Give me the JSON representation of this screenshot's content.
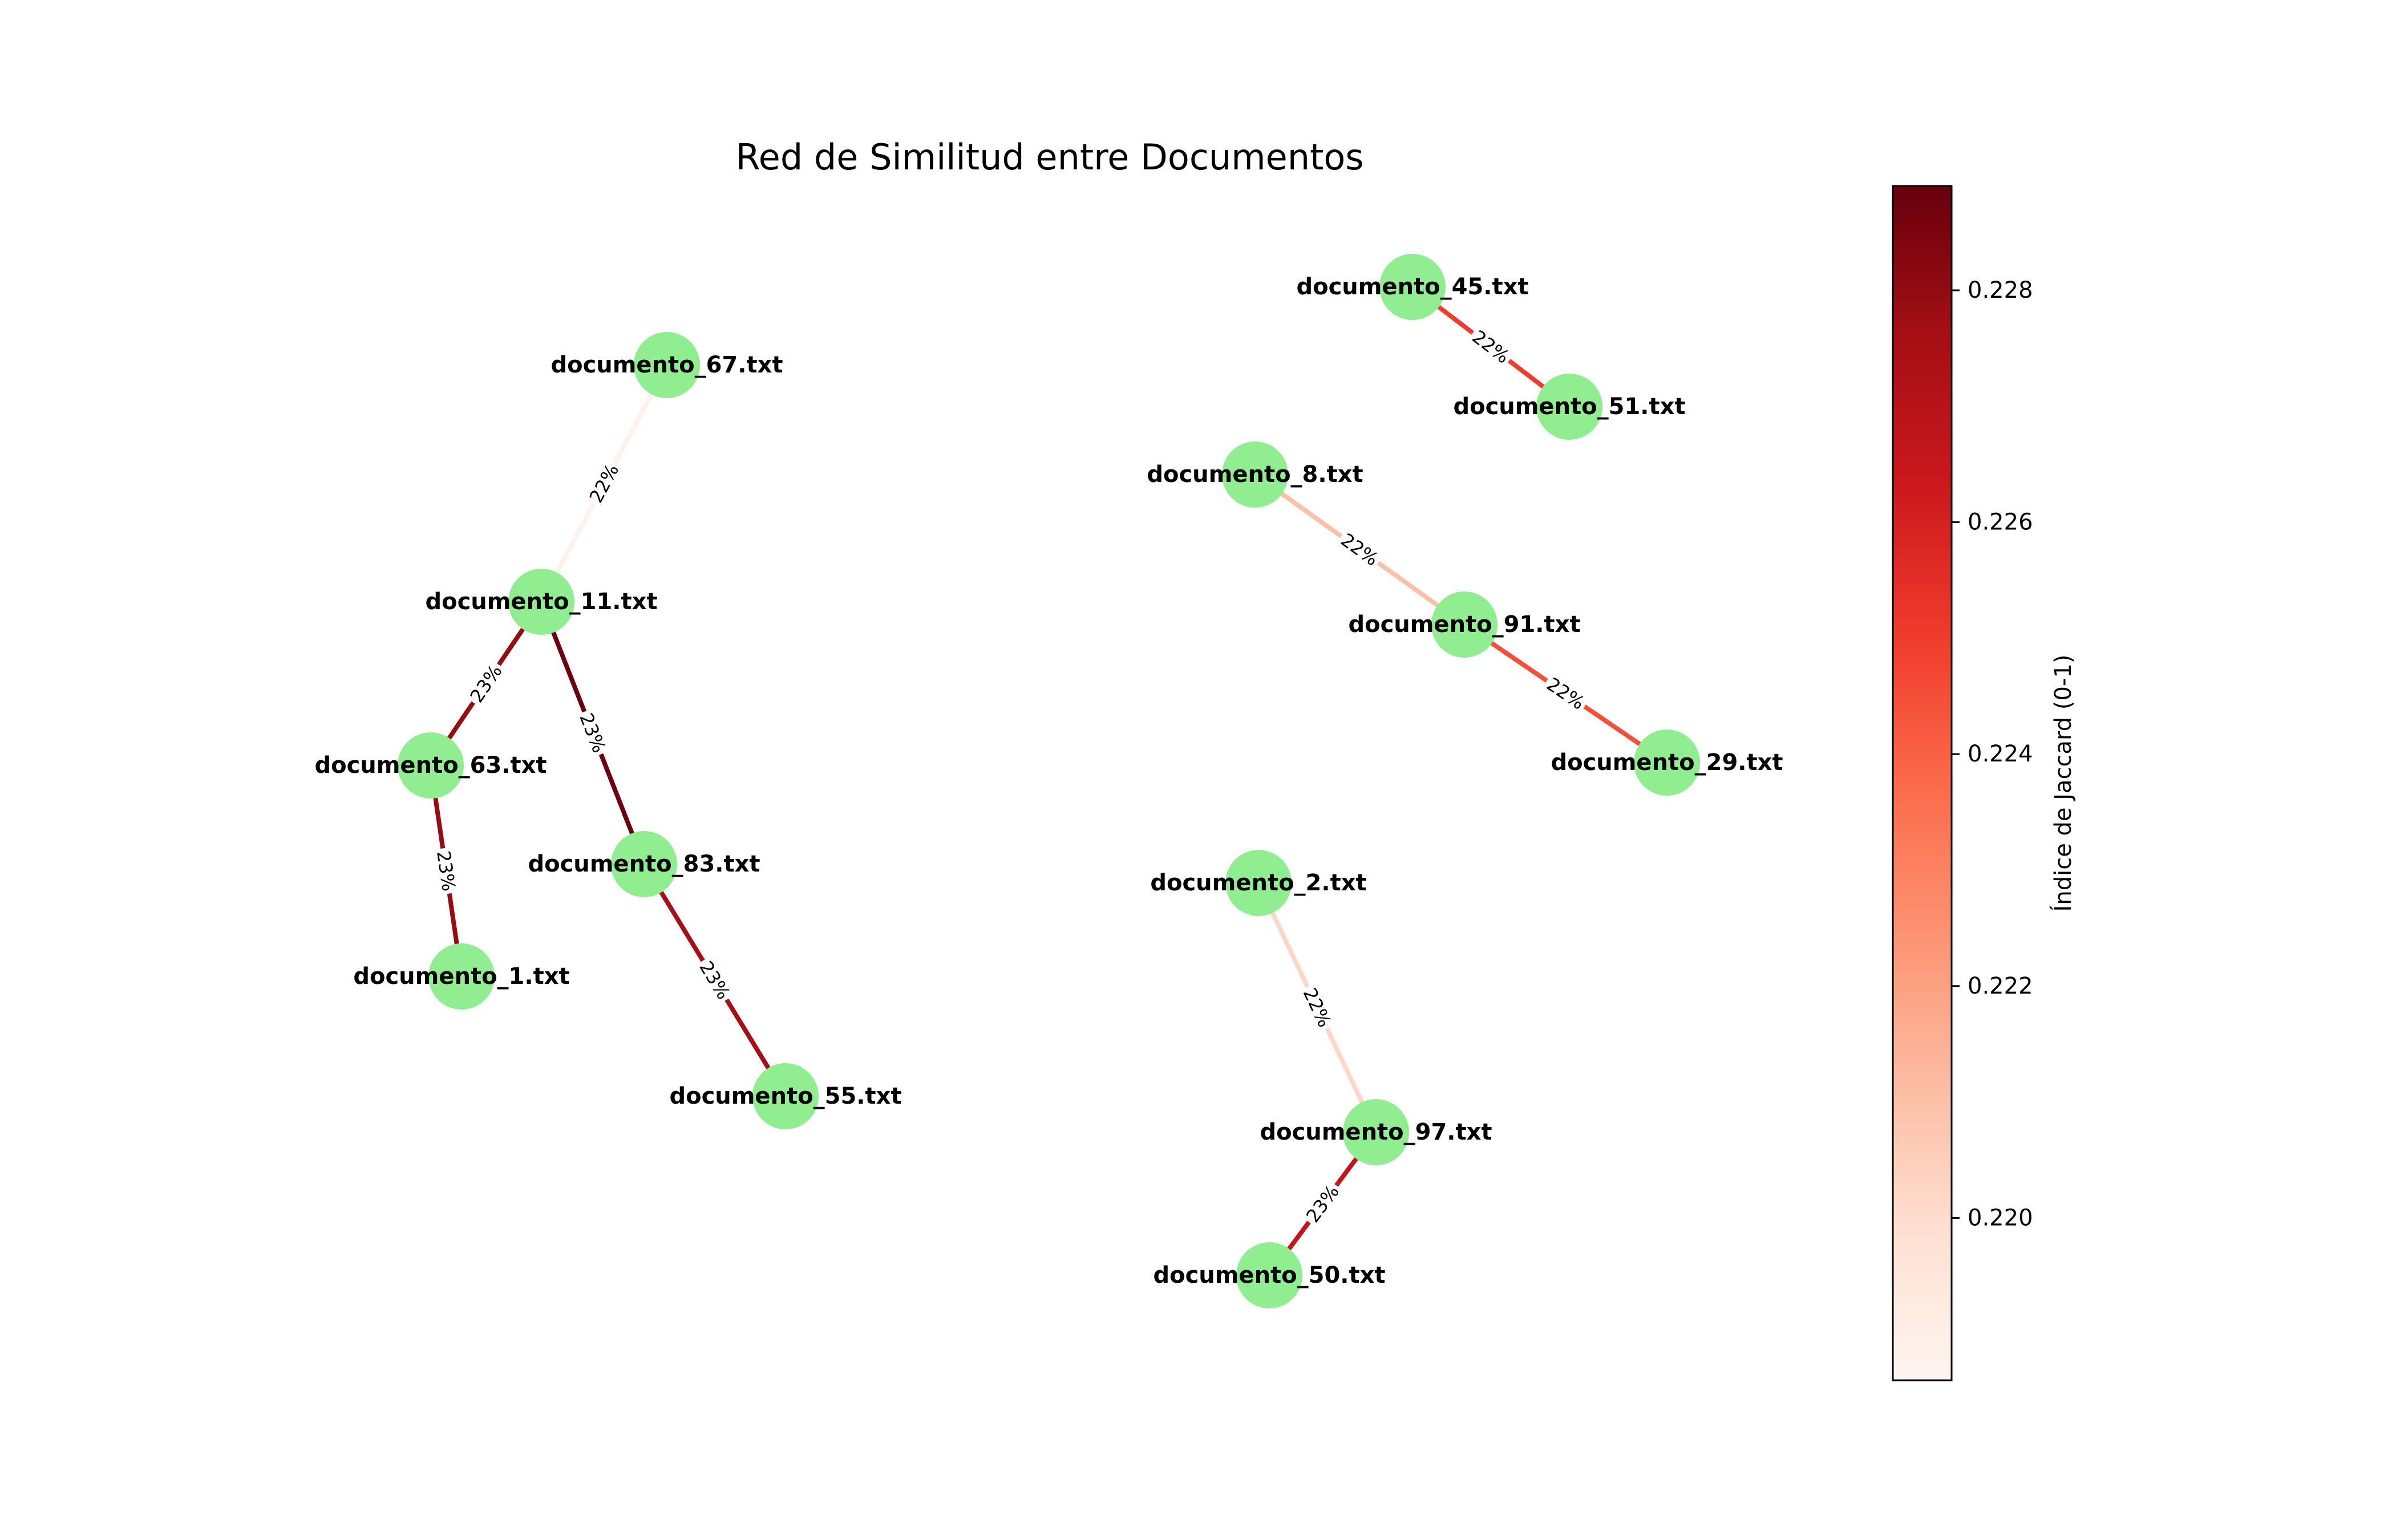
{
  "title": "Red de Similitud entre Documentos",
  "node_color": "#90ee90",
  "nodes": [
    {
      "id": "documento_67.txt"
    },
    {
      "id": "documento_11.txt"
    },
    {
      "id": "documento_63.txt"
    },
    {
      "id": "documento_83.txt"
    },
    {
      "id": "documento_1.txt"
    },
    {
      "id": "documento_55.txt"
    },
    {
      "id": "documento_45.txt"
    },
    {
      "id": "documento_51.txt"
    },
    {
      "id": "documento_8.txt"
    },
    {
      "id": "documento_91.txt"
    },
    {
      "id": "documento_29.txt"
    },
    {
      "id": "documento_2.txt"
    },
    {
      "id": "documento_97.txt"
    },
    {
      "id": "documento_50.txt"
    }
  ],
  "edges": [
    {
      "source": "documento_67.txt",
      "target": "documento_11.txt",
      "weight": 0.2188,
      "label": "22%"
    },
    {
      "source": "documento_11.txt",
      "target": "documento_63.txt",
      "weight": 0.2279,
      "label": "23%"
    },
    {
      "source": "documento_11.txt",
      "target": "documento_83.txt",
      "weight": 0.2288,
      "label": "23%"
    },
    {
      "source": "documento_63.txt",
      "target": "documento_1.txt",
      "weight": 0.2279,
      "label": "23%"
    },
    {
      "source": "documento_83.txt",
      "target": "documento_55.txt",
      "weight": 0.2276,
      "label": "23%"
    },
    {
      "source": "documento_45.txt",
      "target": "documento_51.txt",
      "weight": 0.225,
      "label": "22%"
    },
    {
      "source": "documento_8.txt",
      "target": "documento_91.txt",
      "weight": 0.221,
      "label": "22%"
    },
    {
      "source": "documento_91.txt",
      "target": "documento_29.txt",
      "weight": 0.2245,
      "label": "22%"
    },
    {
      "source": "documento_2.txt",
      "target": "documento_97.txt",
      "weight": 0.2202,
      "label": "22%"
    },
    {
      "source": "documento_97.txt",
      "target": "documento_50.txt",
      "weight": 0.2266,
      "label": "23%"
    }
  ],
  "colorbar": {
    "label": "Índice de Jaccard (0-1)",
    "min": 0.2186,
    "max": 0.2289,
    "colormap": [
      "#fff5f0",
      "#fee0d2",
      "#fcbba1",
      "#fc9272",
      "#fb6a4a",
      "#ef3b2c",
      "#cb181d",
      "#a50f15",
      "#67000d"
    ],
    "ticks": [
      "0.220",
      "0.222",
      "0.224",
      "0.226",
      "0.228"
    ]
  }
}
